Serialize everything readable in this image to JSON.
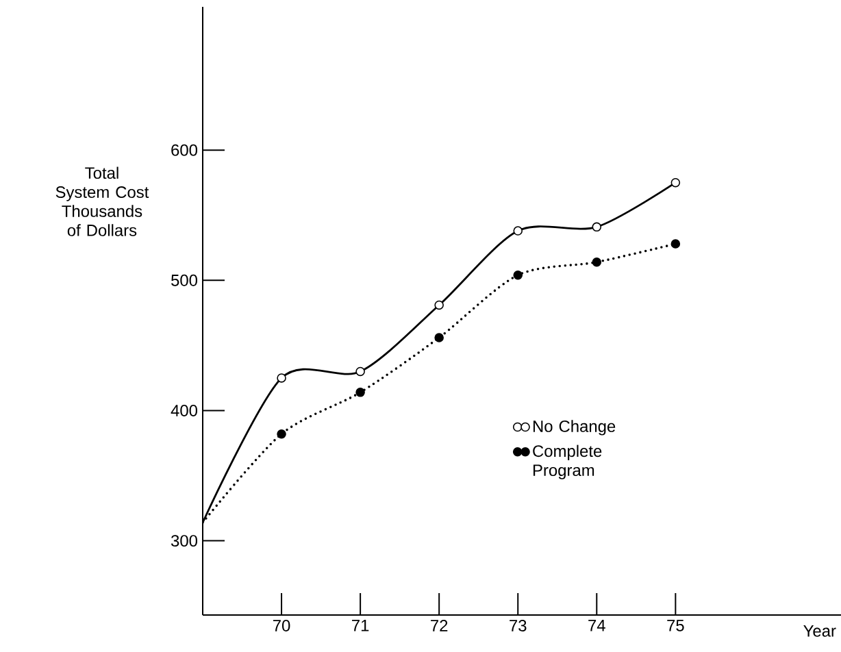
{
  "chart_data": {
    "type": "line",
    "ylabel": "Total System Cost Thousands of Dollars",
    "xlabel": "Year",
    "x": [
      69,
      70,
      71,
      72,
      73,
      74,
      75
    ],
    "series": [
      {
        "name": "No Change",
        "color": "#000000",
        "line_style": "solid",
        "marker": "circle",
        "values": [
          314,
          425,
          430,
          481,
          538,
          541,
          575
        ]
      },
      {
        "name": "Complete Program",
        "color": "#000000",
        "line_style": "dotted",
        "marker": "circle",
        "values": [
          314,
          382,
          414,
          456,
          504,
          514,
          528
        ]
      }
    ],
    "xlim": [
      69,
      77.1
    ],
    "ylim": [
      243,
      710
    ],
    "xticks": [
      {
        "value": 70,
        "label": "70"
      },
      {
        "value": 71,
        "label": "71"
      },
      {
        "value": 72,
        "label": "72"
      },
      {
        "value": 73,
        "label": "73"
      },
      {
        "value": 74,
        "label": "74"
      },
      {
        "value": 75,
        "label": "75"
      }
    ],
    "yticks": [
      300,
      400,
      500,
      600
    ],
    "grid": false,
    "legend": "bottom right"
  }
}
